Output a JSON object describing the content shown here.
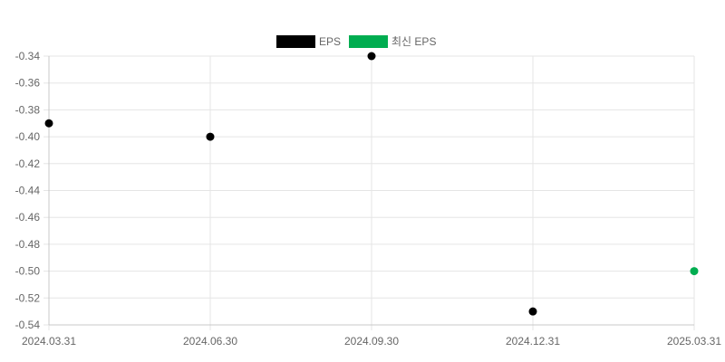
{
  "chart_data": {
    "type": "scatter",
    "x_categories": [
      "2024.03.31",
      "2024.06.30",
      "2024.09.30",
      "2024.12.31",
      "2025.03.31"
    ],
    "ylim": [
      -0.54,
      -0.34
    ],
    "y_ticks": [
      "-0.34",
      "-0.36",
      "-0.38",
      "-0.40",
      "-0.42",
      "-0.44",
      "-0.46",
      "-0.48",
      "-0.50",
      "-0.52",
      "-0.54"
    ],
    "grid": true,
    "legend_position": "top-center",
    "series": [
      {
        "name": "EPS",
        "color": "#000000",
        "points": [
          {
            "x": "2024.03.31",
            "y": -0.39
          },
          {
            "x": "2024.06.30",
            "y": -0.4
          },
          {
            "x": "2024.09.30",
            "y": -0.34
          },
          {
            "x": "2024.12.31",
            "y": -0.53
          }
        ]
      },
      {
        "name": "최신 EPS",
        "color": "#00AD50",
        "points": [
          {
            "x": "2025.03.31",
            "y": -0.5
          }
        ]
      }
    ]
  }
}
